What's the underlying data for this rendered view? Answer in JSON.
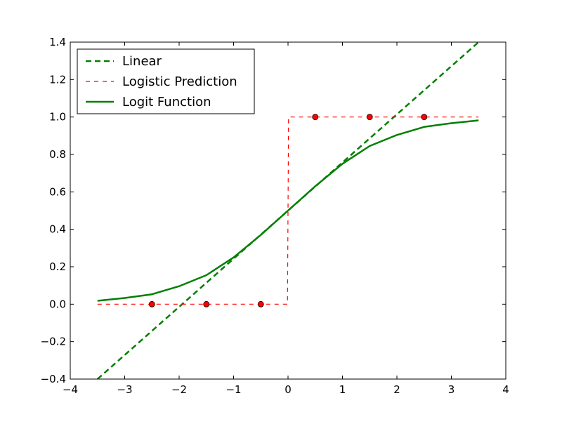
{
  "chart_data": {
    "type": "line",
    "title": "",
    "xlabel": "",
    "ylabel": "",
    "xlim": [
      -4,
      4
    ],
    "ylim": [
      -0.4,
      1.4
    ],
    "grid": false,
    "legend_position": "top-left",
    "x_ticks": [
      {
        "value": -4,
        "label": "−4"
      },
      {
        "value": -3,
        "label": "−3"
      },
      {
        "value": -2,
        "label": "−2"
      },
      {
        "value": -1,
        "label": "−1"
      },
      {
        "value": 0,
        "label": "0"
      },
      {
        "value": 1,
        "label": "1"
      },
      {
        "value": 2,
        "label": "2"
      },
      {
        "value": 3,
        "label": "3"
      },
      {
        "value": 4,
        "label": "4"
      }
    ],
    "y_ticks": [
      {
        "value": -0.4,
        "label": "−0.4"
      },
      {
        "value": -0.2,
        "label": "−0.2"
      },
      {
        "value": 0.0,
        "label": "0.0"
      },
      {
        "value": 0.2,
        "label": "0.2"
      },
      {
        "value": 0.4,
        "label": "0.4"
      },
      {
        "value": 0.6,
        "label": "0.6"
      },
      {
        "value": 0.8,
        "label": "0.8"
      },
      {
        "value": 1.0,
        "label": "1.0"
      },
      {
        "value": 1.2,
        "label": "1.2"
      },
      {
        "value": 1.4,
        "label": "1.4"
      }
    ],
    "series": [
      {
        "name": "Linear",
        "style": "dashed-thick",
        "color": "#008000",
        "x": [
          -3.5,
          3.5
        ],
        "y": [
          -0.4,
          1.4
        ]
      },
      {
        "name": "Logistic Prediction",
        "style": "dashed-thin",
        "color": "#ff0000",
        "x": [
          -3.5,
          -0.01,
          0.01,
          3.5
        ],
        "y": [
          0,
          0,
          1,
          1
        ]
      },
      {
        "name": "Logit Function",
        "style": "solid",
        "color": "#008000",
        "x": [
          -3.5,
          -3.0,
          -2.5,
          -2.0,
          -1.5,
          -1.0,
          -0.5,
          0.0,
          0.5,
          1.0,
          1.5,
          2.0,
          2.5,
          3.0,
          3.5
        ],
        "y": [
          0.018,
          0.033,
          0.053,
          0.096,
          0.155,
          0.25,
          0.37,
          0.5,
          0.63,
          0.75,
          0.845,
          0.904,
          0.947,
          0.967,
          0.982
        ]
      }
    ],
    "scatter": {
      "color": "#ff0000",
      "x": [
        -2.5,
        -1.5,
        -0.5,
        0.5,
        1.5,
        2.5
      ],
      "y": [
        0,
        0,
        0,
        1,
        1,
        1
      ]
    }
  }
}
